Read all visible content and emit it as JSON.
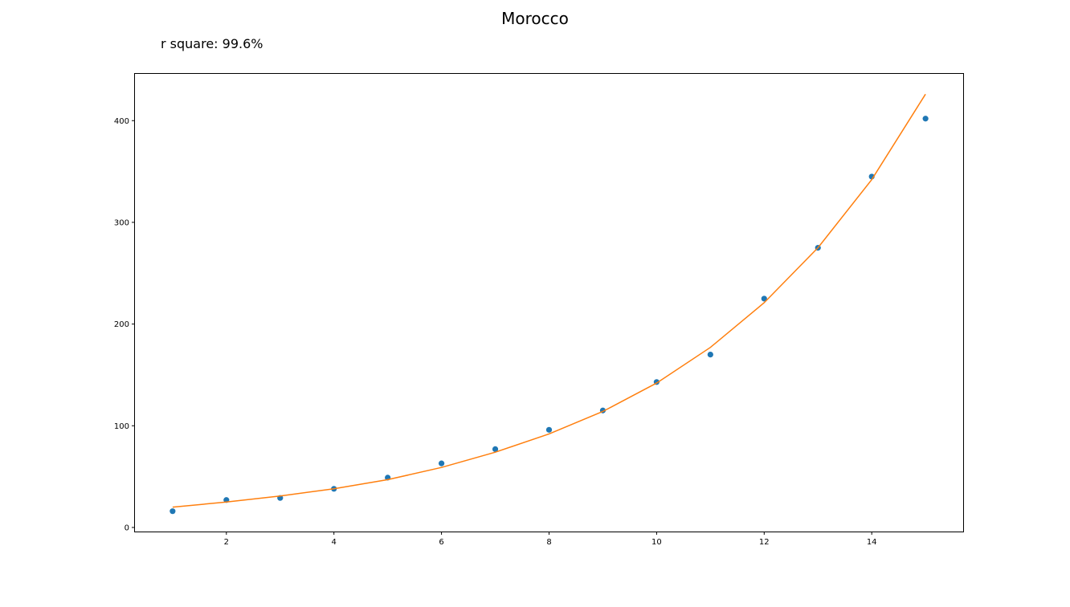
{
  "chart_data": {
    "type": "scatter",
    "title": "Morocco",
    "annotation": "r square: 99.6%",
    "xlabel": "",
    "ylabel": "",
    "xlim": [
      0.3,
      15.7
    ],
    "ylim": [
      -4,
      446
    ],
    "x_ticks": [
      2,
      4,
      6,
      8,
      10,
      12,
      14
    ],
    "y_ticks": [
      0,
      100,
      200,
      300,
      400
    ],
    "grid": false,
    "series": [
      {
        "kind": "scatter",
        "color": "#1f77b4",
        "x": [
          1,
          2,
          3,
          4,
          5,
          6,
          7,
          8,
          9,
          10,
          11,
          12,
          13,
          14,
          15
        ],
        "y": [
          16,
          27,
          29,
          38,
          49,
          63,
          77,
          96,
          115,
          143,
          170,
          225,
          275,
          345,
          402
        ]
      },
      {
        "kind": "line",
        "color": "#ff7f0e",
        "x": [
          1,
          2,
          3,
          4,
          5,
          6,
          7,
          8,
          9,
          10,
          11,
          12,
          13,
          14,
          15
        ],
        "y": [
          20,
          25,
          31,
          38,
          47,
          59,
          74,
          92,
          114,
          142,
          177,
          221,
          275,
          342,
          426
        ]
      }
    ]
  }
}
